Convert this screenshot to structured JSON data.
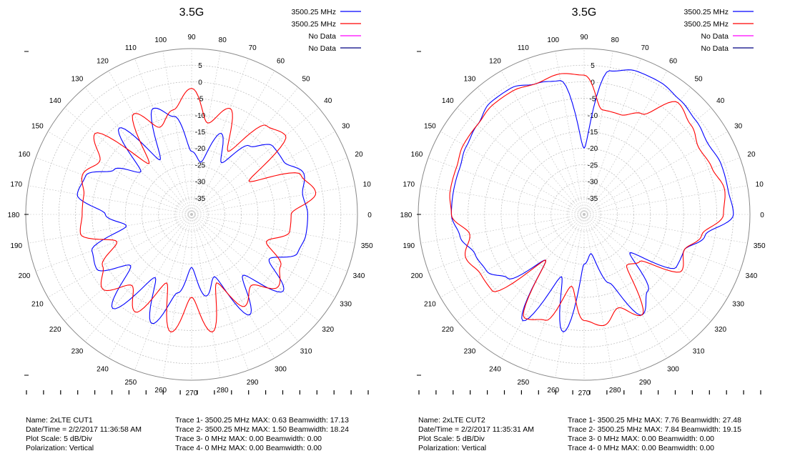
{
  "charts": [
    {
      "info": {
        "name": "Name: 2xLTE CUT1",
        "datetime": "Date/Time = 2/2/2017 11:36:58 AM",
        "scale": "Plot Scale: 5 dB/Div",
        "polarization": "Polarization: Vertical",
        "traces": [
          "Trace 1-  3500.25 MHz  MAX: 0.63 Beamwidth: 17.13",
          "Trace 2-  3500.25 MHz  MAX: 1.50 Beamwidth: 18.24",
          "Trace 3-  0 MHz  MAX: 0.00 Beamwidth: 0.00",
          "Trace 4-  0 MHz  MAX: 0.00 Beamwidth: 0.00"
        ]
      }
    },
    {
      "info": {
        "name": "Name: 2xLTE CUT2",
        "datetime": "Date/Time = 2/2/2017 11:35:31 AM",
        "scale": "Plot Scale: 5 dB/Div",
        "polarization": "Polarization: Vertical",
        "traces": [
          "Trace 1-  3500.25 MHz  MAX: 7.76 Beamwidth: 27.48",
          "Trace 2-  3500.25 MHz  MAX: 7.84 Beamwidth: 19.15",
          "Trace 3-  0 MHz  MAX: 0.00 Beamwidth: 0.00",
          "Trace 4-  0 MHz  MAX: 0.00 Beamwidth: 0.00"
        ]
      }
    }
  ],
  "chart_data": [
    {
      "type": "polar-line",
      "title": "3.5G",
      "radial_ticks": [
        5,
        0,
        -5,
        -10,
        -15,
        -20,
        -25,
        -30,
        -35
      ],
      "radial_range_db": [
        -40,
        10
      ],
      "angle_ticks": [
        0,
        10,
        20,
        30,
        40,
        50,
        60,
        70,
        80,
        90,
        100,
        110,
        120,
        130,
        140,
        150,
        160,
        170,
        180,
        190,
        200,
        210,
        220,
        230,
        240,
        250,
        260,
        270,
        280,
        290,
        300,
        310,
        320,
        330,
        340,
        350
      ],
      "grid": true,
      "legend_position": "top-right",
      "series": [
        {
          "name": "3500.25 MHz",
          "color": "#0000ff",
          "angles": [
            0,
            10,
            20,
            30,
            40,
            50,
            60,
            70,
            80,
            90,
            100,
            110,
            120,
            130,
            140,
            150,
            160,
            170,
            180,
            190,
            200,
            210,
            220,
            230,
            240,
            250,
            260,
            270,
            280,
            290,
            300,
            310,
            320,
            330,
            340,
            350
          ],
          "values": [
            -5,
            -6,
            -4,
            -8,
            -8,
            -13,
            -22,
            -14,
            -24,
            -21,
            -10,
            -6,
            -21,
            -6,
            -20,
            -13,
            -6,
            -5,
            -14,
            -20,
            -8,
            -7,
            -16,
            -3,
            -18,
            -5,
            -16,
            -24,
            -15,
            -20,
            -5,
            -16,
            -4,
            -13,
            -6,
            -5
          ]
        },
        {
          "name": "3500.25 MHz",
          "color": "#ff0000",
          "angles": [
            0,
            10,
            20,
            30,
            40,
            50,
            60,
            70,
            80,
            90,
            100,
            110,
            120,
            130,
            140,
            150,
            160,
            170,
            180,
            190,
            200,
            210,
            220,
            230,
            240,
            250,
            260,
            270,
            280,
            290,
            300,
            310,
            320,
            330,
            340,
            350
          ],
          "values": [
            -10,
            -2,
            -5,
            -20,
            -3,
            -5,
            -18,
            -6,
            -12,
            -2,
            -8,
            -12,
            -5,
            -20,
            -2,
            -8,
            -5,
            -7,
            -7,
            -6,
            -16,
            -9,
            -5,
            -12,
            -6,
            -18,
            -4,
            -15,
            -4,
            -18,
            -8,
            -12,
            -6,
            -9,
            -16,
            -10
          ]
        },
        {
          "name": "No Data",
          "color": "#ff00ff",
          "angles": [],
          "values": []
        },
        {
          "name": "No Data",
          "color": "#000080",
          "angles": [],
          "values": []
        }
      ]
    },
    {
      "type": "polar-line",
      "title": "3.5G",
      "radial_ticks": [
        5,
        0,
        -5,
        -10,
        -15,
        -20,
        -25,
        -30,
        -35
      ],
      "radial_range_db": [
        -40,
        10
      ],
      "angle_ticks": [
        0,
        10,
        20,
        30,
        40,
        50,
        60,
        70,
        80,
        90,
        100,
        110,
        120,
        130,
        140,
        150,
        160,
        170,
        180,
        190,
        200,
        210,
        220,
        230,
        240,
        250,
        260,
        270,
        280,
        290,
        300,
        310,
        320,
        330,
        340,
        350
      ],
      "grid": true,
      "legend_position": "top-right",
      "series": [
        {
          "name": "3500.25 MHz",
          "color": "#0000ff",
          "angles": [
            0,
            10,
            20,
            30,
            40,
            50,
            60,
            70,
            80,
            90,
            100,
            110,
            120,
            130,
            140,
            150,
            160,
            170,
            180,
            190,
            200,
            210,
            220,
            230,
            240,
            250,
            260,
            270,
            280,
            290,
            300,
            310,
            320,
            330,
            340,
            350
          ],
          "values": [
            5,
            4,
            4,
            3,
            4,
            5,
            6,
            6,
            4,
            -20,
            1,
            2,
            4,
            4,
            2,
            1,
            0,
            0,
            0,
            -2,
            -5,
            -6,
            -10,
            -22,
            -3,
            -20,
            -4,
            -25,
            -28,
            -18,
            -5,
            -10,
            -22,
            -8,
            -8,
            -3
          ]
        },
        {
          "name": "3500.25 MHz",
          "color": "#ff0000",
          "angles": [
            0,
            10,
            20,
            30,
            40,
            50,
            60,
            70,
            80,
            90,
            100,
            110,
            120,
            130,
            140,
            150,
            160,
            170,
            180,
            190,
            200,
            210,
            220,
            230,
            240,
            250,
            260,
            270,
            280,
            290,
            300,
            310,
            320,
            330,
            340,
            350
          ],
          "values": [
            2,
            3,
            1,
            0,
            2,
            4,
            -5,
            -8,
            -8,
            2,
            3,
            2,
            3,
            3,
            2,
            2,
            1,
            1,
            0,
            -5,
            -2,
            -4,
            -4,
            -22,
            -4,
            -6,
            -18,
            -8,
            -6,
            -10,
            -5,
            -20,
            -18,
            -6,
            -8,
            -4
          ]
        },
        {
          "name": "No Data",
          "color": "#ff00ff",
          "angles": [],
          "values": []
        },
        {
          "name": "No Data",
          "color": "#000080",
          "angles": [],
          "values": []
        }
      ]
    }
  ]
}
